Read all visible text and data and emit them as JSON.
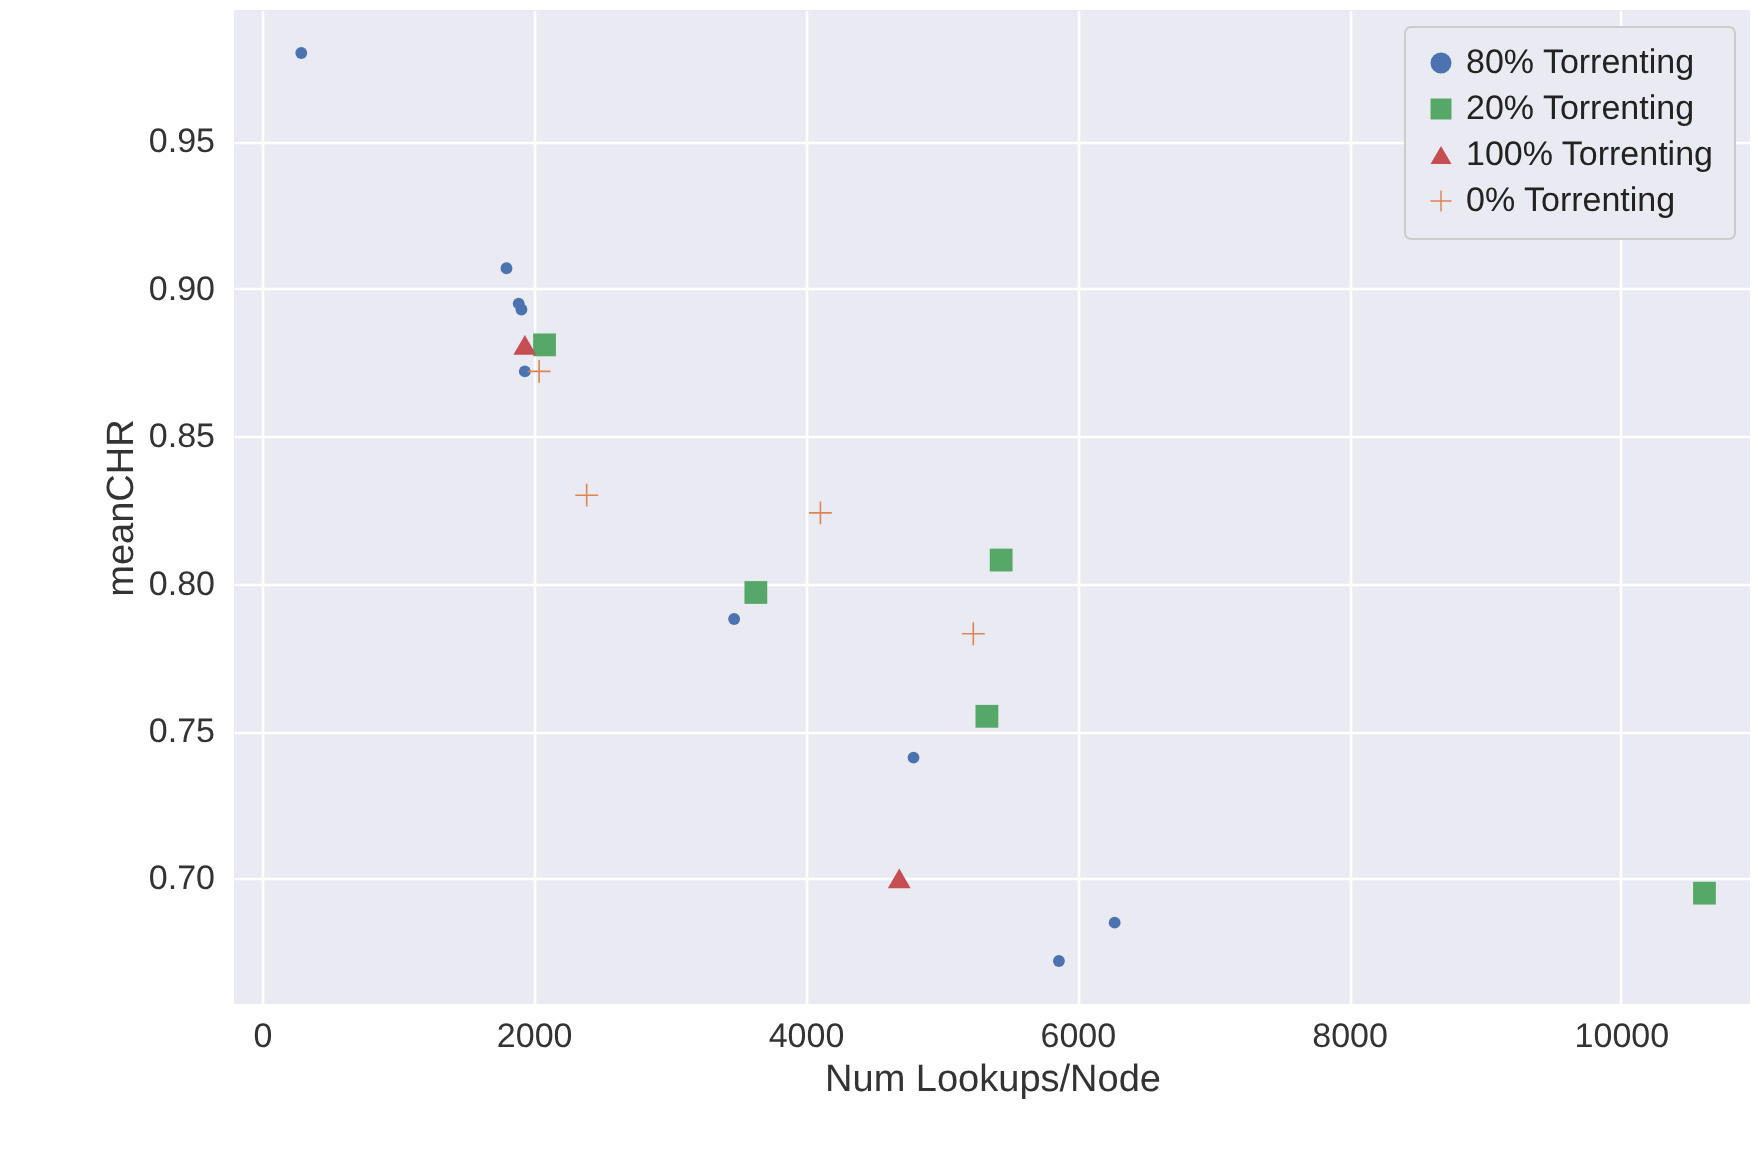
{
  "chart_data": {
    "type": "scatter",
    "xlabel": "Num Lookups/Node",
    "ylabel": "meanCHR",
    "xlim": [
      -205,
      10950
    ],
    "ylim": [
      0.6574,
      0.9946
    ],
    "xticks": [
      0,
      2000,
      4000,
      6000,
      8000,
      10000
    ],
    "yticks": [
      {
        "value": 0.7,
        "label": "0.70"
      },
      {
        "value": 0.75,
        "label": "0.75"
      },
      {
        "value": 0.8,
        "label": "0.80"
      },
      {
        "value": 0.85,
        "label": "0.85"
      },
      {
        "value": 0.9,
        "label": "0.90"
      },
      {
        "value": 0.95,
        "label": "0.95"
      }
    ],
    "grid": true,
    "legend": "top right",
    "series": [
      {
        "name": "80% Torrenting",
        "color": "#4c72b0",
        "marker": "circle",
        "x": [
          290,
          1800,
          1890,
          1910,
          1935,
          3475,
          4795,
          5865,
          6275
        ],
        "values": [
          0.98,
          0.907,
          0.895,
          0.893,
          0.872,
          0.788,
          0.741,
          0.672,
          0.685
        ]
      },
      {
        "name": "20% Torrenting",
        "color": "#55a868",
        "marker": "square",
        "x": [
          2080,
          3635,
          5440,
          5335,
          10615
        ],
        "values": [
          0.881,
          0.797,
          0.808,
          0.755,
          0.695
        ]
      },
      {
        "name": "100% Torrenting",
        "color": "#c44e52",
        "marker": "triangle",
        "x": [
          1935,
          4690
        ],
        "values": [
          0.881,
          0.7
        ]
      },
      {
        "name": "0% Torrenting",
        "color": "#dd8452",
        "marker": "cross",
        "x": [
          2040,
          2390,
          4110,
          5235
        ],
        "values": [
          0.872,
          0.83,
          0.824,
          0.783
        ]
      }
    ]
  }
}
